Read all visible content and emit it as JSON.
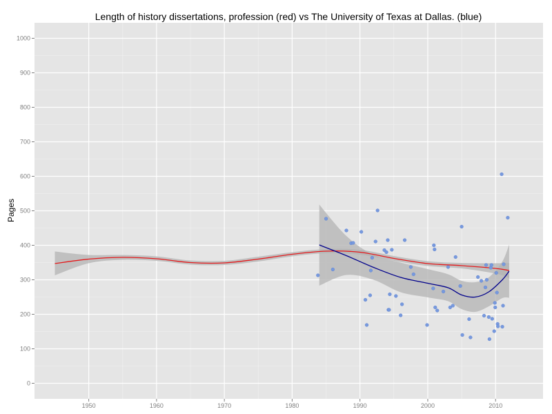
{
  "chart_data": {
    "type": "scatter",
    "title": "Length of history dissertations, profession (red) vs The University of Texas at Dallas. (blue)",
    "xlabel": "",
    "ylabel": "Pages",
    "xlim": [
      1942,
      2017
    ],
    "ylim": [
      -45,
      1045
    ],
    "x_ticks": [
      1950,
      1960,
      1970,
      1980,
      1990,
      2000,
      2010
    ],
    "x_tick_labels": [
      "1950",
      "1960",
      "1970",
      "1980",
      "1990",
      "2000",
      "2010"
    ],
    "y_ticks": [
      0,
      100,
      200,
      300,
      400,
      500,
      600,
      700,
      800,
      900,
      1000
    ],
    "y_tick_labels": [
      "0",
      "100",
      "200",
      "300",
      "400",
      "500",
      "600",
      "700",
      "800",
      "900",
      "1000"
    ],
    "grid": true,
    "colors": {
      "panel_background": "#e5e5e5",
      "grid_major": "#ffffff",
      "grid_minor": "#f2f2f2",
      "confidence_band": "#b3b3b3",
      "profession_line": "#e41a1c",
      "utd_line": "#00008b",
      "utd_points": "#7799dd"
    },
    "series": [
      {
        "kind": "smooth",
        "color": "#e41a1c",
        "x": [
          1945,
          1950,
          1955,
          1960,
          1965,
          1970,
          1975,
          1980,
          1985,
          1990,
          1995,
          2000,
          2005,
          2010,
          2012
        ],
        "y": [
          347,
          360,
          365,
          361,
          350,
          349,
          360,
          374,
          383,
          380,
          362,
          347,
          341,
          333,
          327
        ],
        "ci_low": [
          313,
          348,
          358,
          355,
          344,
          343,
          353,
          368,
          377,
          373,
          355,
          340,
          333,
          318,
          305
        ],
        "ci_high": [
          382,
          372,
          372,
          368,
          356,
          355,
          367,
          380,
          389,
          387,
          369,
          354,
          349,
          348,
          349
        ]
      },
      {
        "kind": "smooth",
        "color": "#00008b",
        "x": [
          1984,
          1988,
          1992,
          1996,
          2000,
          2003,
          2005,
          2007,
          2009,
          2011,
          2012
        ],
        "y": [
          401,
          370,
          336,
          307,
          290,
          277,
          256,
          250,
          265,
          300,
          325
        ],
        "ci_low": [
          283,
          314,
          300,
          264,
          249,
          238,
          215,
          207,
          223,
          247,
          248
        ],
        "ci_high": [
          518,
          427,
          372,
          350,
          331,
          316,
          297,
          293,
          307,
          353,
          402
        ]
      },
      {
        "kind": "points",
        "color": "#7799dd",
        "points": [
          [
            1983.8,
            313
          ],
          [
            1985,
            477
          ],
          [
            1986,
            330
          ],
          [
            1988,
            443
          ],
          [
            1988.7,
            406
          ],
          [
            1989,
            407
          ],
          [
            1990.2,
            439
          ],
          [
            1990.8,
            242
          ],
          [
            1991,
            169
          ],
          [
            1991.5,
            255
          ],
          [
            1991.6,
            327
          ],
          [
            1991.8,
            364
          ],
          [
            1992.3,
            411
          ],
          [
            1992.6,
            501
          ],
          [
            1993.6,
            386
          ],
          [
            1993.9,
            380
          ],
          [
            1994.1,
            415
          ],
          [
            1994.2,
            213
          ],
          [
            1994.3,
            213
          ],
          [
            1994.4,
            258
          ],
          [
            1994.7,
            387
          ],
          [
            1995.3,
            253
          ],
          [
            1996,
            197
          ],
          [
            1996.2,
            229
          ],
          [
            1996.6,
            415
          ],
          [
            1997.5,
            337
          ],
          [
            1997.9,
            316
          ],
          [
            1999.9,
            169
          ],
          [
            2000.8,
            275
          ],
          [
            2000.9,
            400
          ],
          [
            2001,
            388
          ],
          [
            2001.1,
            220
          ],
          [
            2001.4,
            211
          ],
          [
            2002.3,
            266
          ],
          [
            2003,
            337
          ],
          [
            2003.3,
            220
          ],
          [
            2003.7,
            225
          ],
          [
            2004.1,
            366
          ],
          [
            2004.8,
            282
          ],
          [
            2005,
            454
          ],
          [
            2005.1,
            140
          ],
          [
            2006.1,
            186
          ],
          [
            2006.3,
            133
          ],
          [
            2007.4,
            308
          ],
          [
            2007.9,
            297
          ],
          [
            2008.3,
            196
          ],
          [
            2008.5,
            278
          ],
          [
            2008.6,
            343
          ],
          [
            2008.7,
            300
          ],
          [
            2009,
            192
          ],
          [
            2009.1,
            128
          ],
          [
            2009.3,
            335
          ],
          [
            2009.4,
            343
          ],
          [
            2009.5,
            187
          ],
          [
            2009.8,
            151
          ],
          [
            2009.9,
            233
          ],
          [
            2009.95,
            220
          ],
          [
            2010.1,
            320
          ],
          [
            2010.2,
            263
          ],
          [
            2010.3,
            172
          ],
          [
            2010.35,
            165
          ],
          [
            2010.9,
            606
          ],
          [
            2011,
            164
          ],
          [
            2011.1,
            225
          ],
          [
            2011.2,
            345
          ],
          [
            2011.8,
            480
          ]
        ]
      }
    ]
  }
}
